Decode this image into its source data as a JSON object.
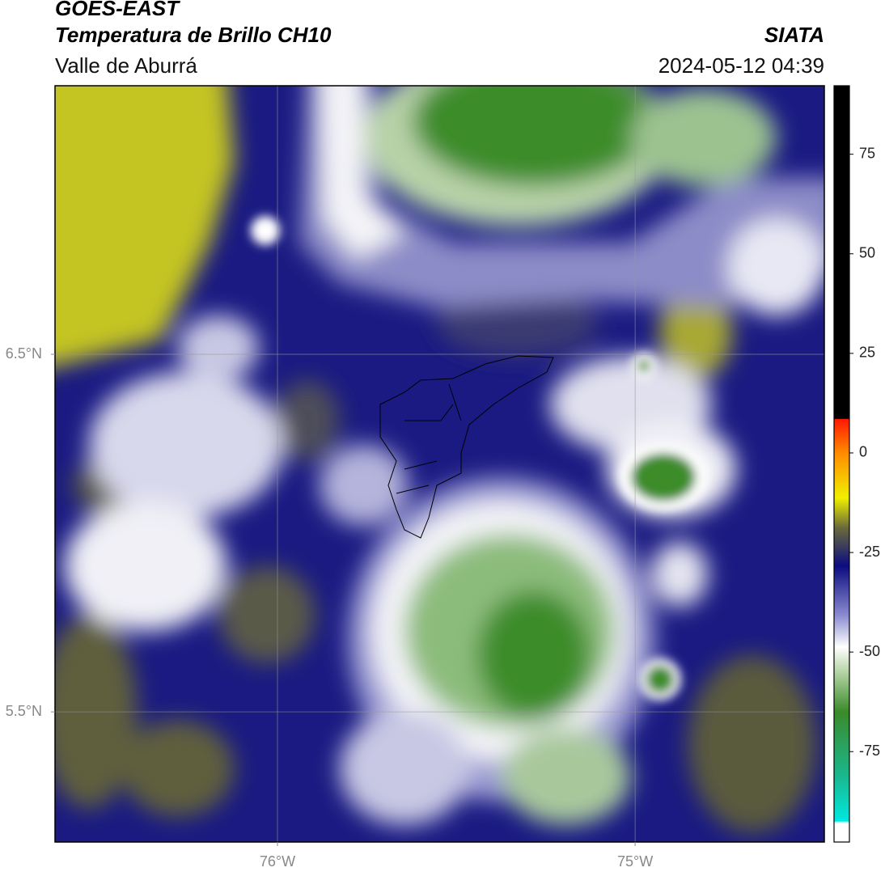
{
  "header": {
    "title": "GOES-EAST",
    "subtitle": "Temperatura de Brillo CH10",
    "region": "Valle de Aburrá",
    "source": "SIATA",
    "datetime": "2024-05-12 04:39"
  },
  "map": {
    "xlim": [
      -76.622,
      -74.471
    ],
    "ylim": [
      5.136,
      7.251
    ],
    "xticks": [
      {
        "value": -76,
        "label": "76°W"
      },
      {
        "value": -75,
        "label": "75°W"
      }
    ],
    "yticks": [
      {
        "value": 6.5,
        "label": "6.5°N"
      },
      {
        "value": 5.5,
        "label": "5.5°N"
      }
    ],
    "grid": true
  },
  "colorbar": {
    "lim": [
      -97.7,
      92.2
    ],
    "ticks": [
      75,
      50,
      25,
      0,
      -25,
      -50,
      -75
    ]
  }
}
